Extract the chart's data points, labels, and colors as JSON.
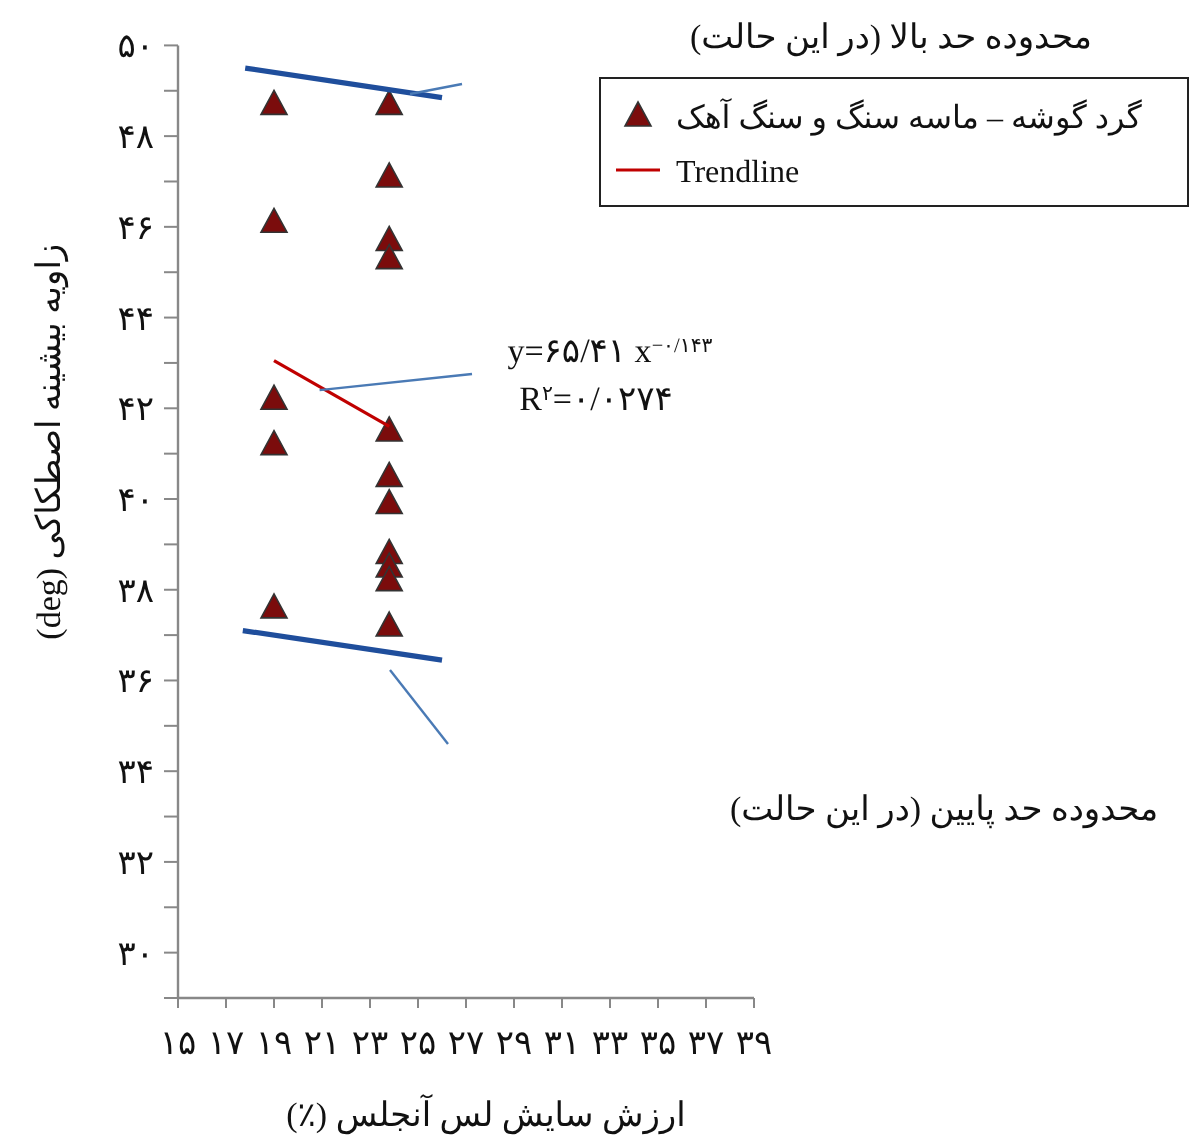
{
  "chart_data": {
    "type": "scatter",
    "xlabel": "ارزش سایش لس آنجلس (٪)",
    "ylabel": "زاویه بیشینه اصطکاکی (deg)",
    "xlim": [
      15,
      39
    ],
    "xticks": [
      {
        "value": 15,
        "label": "۱۵"
      },
      {
        "value": 17,
        "label": "۱۷"
      },
      {
        "value": 19,
        "label": "۱۹"
      },
      {
        "value": 21,
        "label": "۲۱"
      },
      {
        "value": 23,
        "label": "۲۳"
      },
      {
        "value": 25,
        "label": "۲۵"
      },
      {
        "value": 27,
        "label": "۲۷"
      },
      {
        "value": 29,
        "label": "۲۹"
      },
      {
        "value": 31,
        "label": "۳۱"
      },
      {
        "value": 33,
        "label": "۳۳"
      },
      {
        "value": 35,
        "label": "۳۵"
      },
      {
        "value": 37,
        "label": "۳۷"
      },
      {
        "value": 39,
        "label": "۳۹"
      }
    ],
    "ylim": [
      29,
      50
    ],
    "yticks": [
      {
        "value": 29,
        "label": null
      },
      {
        "value": 30,
        "label": "۳۰"
      },
      {
        "value": 31,
        "label": null
      },
      {
        "value": 32,
        "label": "۳۲"
      },
      {
        "value": 33,
        "label": null
      },
      {
        "value": 34,
        "label": "۳۴"
      },
      {
        "value": 35,
        "label": null
      },
      {
        "value": 36,
        "label": "۳۶"
      },
      {
        "value": 37,
        "label": null
      },
      {
        "value": 38,
        "label": "۳۸"
      },
      {
        "value": 39,
        "label": null
      },
      {
        "value": 40,
        "label": "۴۰"
      },
      {
        "value": 41,
        "label": null
      },
      {
        "value": 42,
        "label": "۴۲"
      },
      {
        "value": 43,
        "label": null
      },
      {
        "value": 44,
        "label": "۴۴"
      },
      {
        "value": 45,
        "label": null
      },
      {
        "value": 46,
        "label": "۴۶"
      },
      {
        "value": 47,
        "label": null
      },
      {
        "value": 48,
        "label": "۴۸"
      },
      {
        "value": 49,
        "label": null
      },
      {
        "value": 50,
        "label": "۵۰"
      }
    ],
    "grid": false,
    "legend": "top right",
    "series": [
      {
        "name": "گرد گوشه – ماسه سنگ و سنگ آهک",
        "marker": "triangle",
        "color": "#7b0c0c",
        "x": [
          19,
          19,
          19,
          19,
          19,
          23.8,
          23.8,
          23.8,
          23.8,
          23.8,
          23.8,
          23.8,
          23.8,
          23.8,
          23.8,
          23.8
        ],
        "values": [
          48.7,
          46.1,
          42.2,
          41.2,
          37.6,
          48.7,
          47.1,
          45.7,
          45.3,
          41.5,
          40.5,
          39.9,
          38.8,
          38.5,
          38.2,
          37.2
        ]
      },
      {
        "type": "line",
        "name": "Trendline",
        "color": "#c00000",
        "x": [
          19,
          23.8
        ],
        "values": [
          43.05,
          41.6
        ]
      },
      {
        "type": "line",
        "color": "#1f4e9c",
        "x": [
          17.8,
          26
        ],
        "values": [
          49.5,
          48.85
        ]
      },
      {
        "type": "line",
        "color": "#1f4e9c",
        "x": [
          17.7,
          26
        ],
        "values": [
          37.1,
          36.45
        ]
      }
    ],
    "annotations": [
      "محدوده حد بالا (در این حالت)",
      {
        "text": "y=۶۵/۴۱ x$^{−۰/۱۴۳}$",
        "x": 20.9,
        "y": 42.4
      },
      "R$^{۲}$=۰/۰۲۷۴",
      "محدوده حد پایین (در این حالت)"
    ]
  }
}
